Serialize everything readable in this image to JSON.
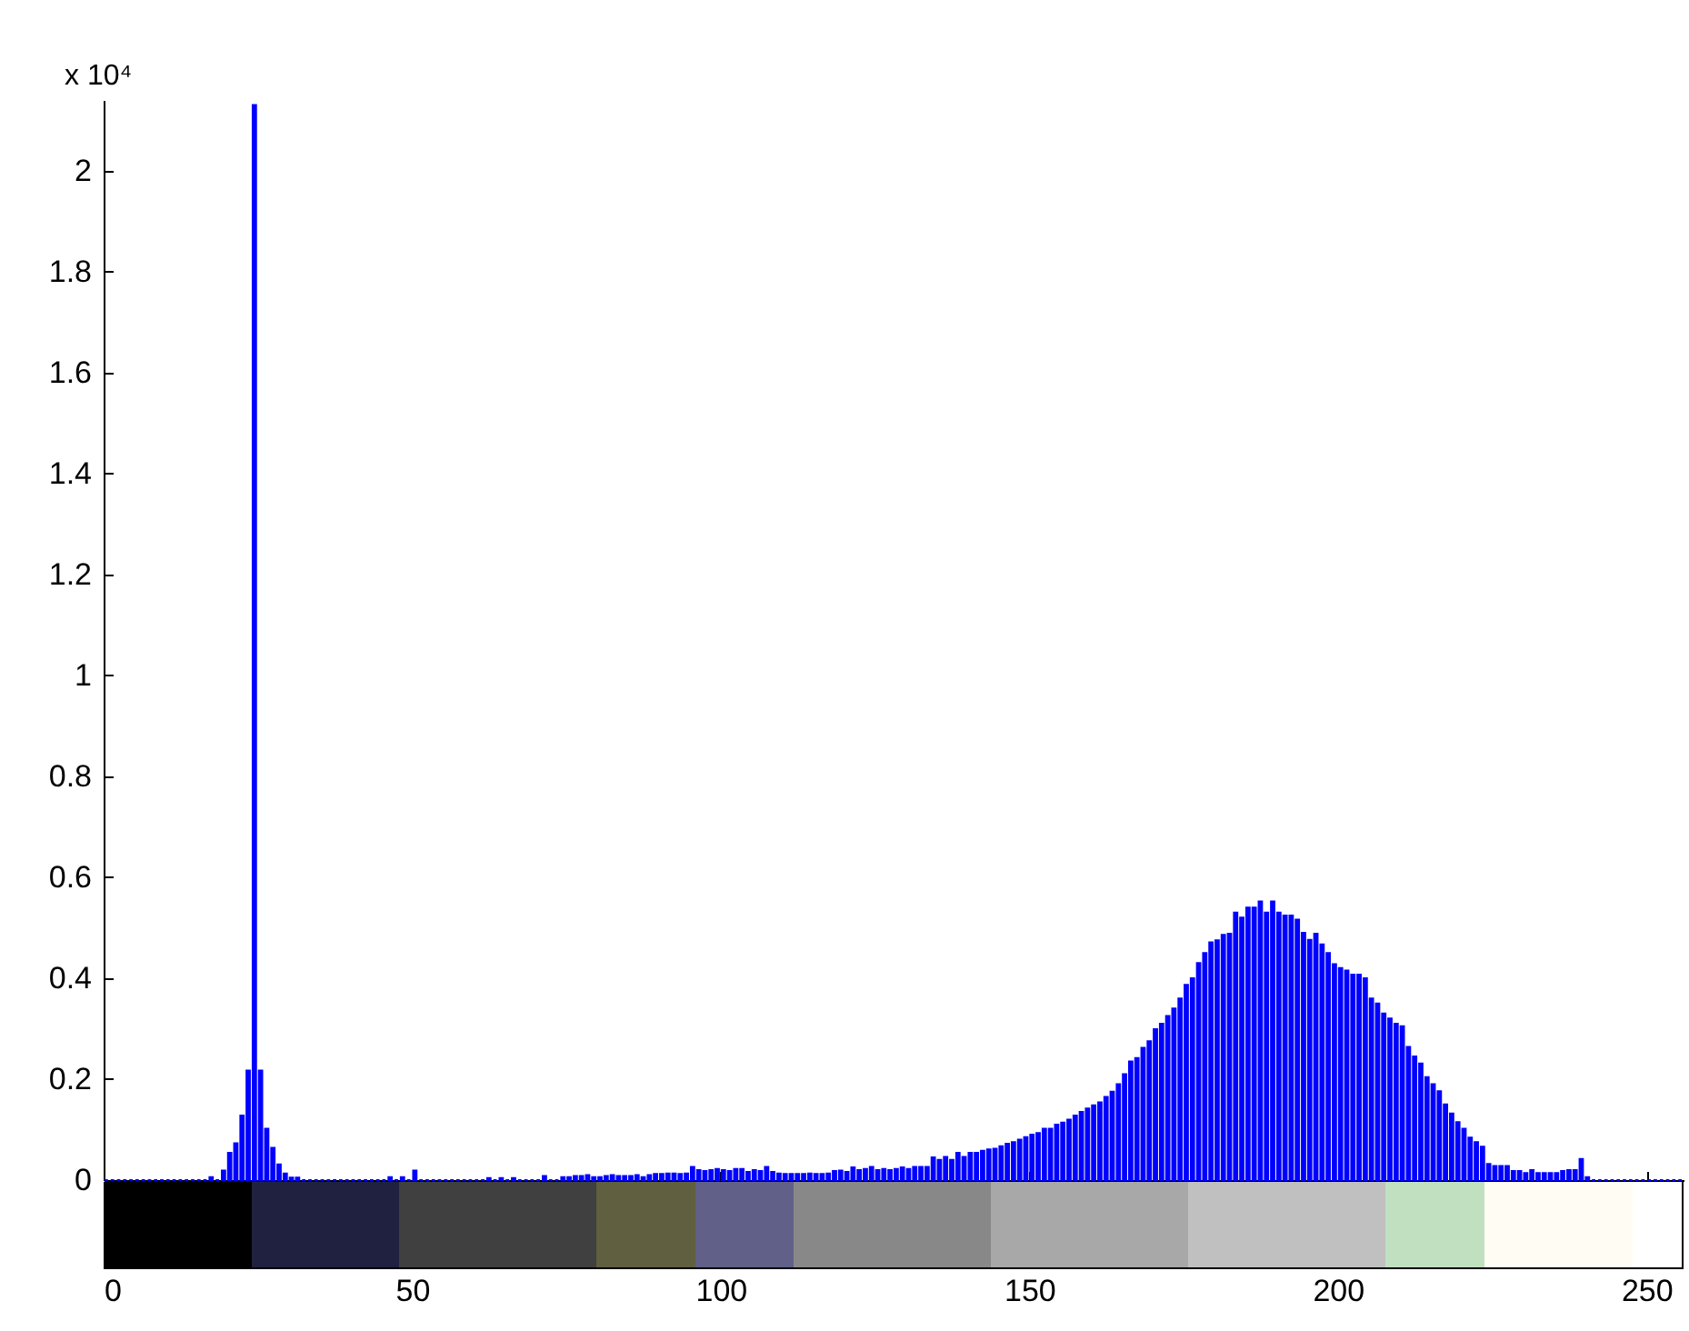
{
  "chart_data": {
    "type": "histogram",
    "ylabel": "x 10⁴",
    "color": "#0000ff",
    "bins": [
      0,
      1,
      2,
      3,
      4,
      5,
      6,
      7,
      8,
      9,
      10,
      11,
      12,
      13,
      14,
      15,
      16,
      17,
      18,
      19,
      20,
      21,
      22,
      23,
      24,
      25,
      26,
      27,
      28,
      29,
      30,
      31,
      32,
      33,
      34,
      35,
      36,
      37,
      38,
      39,
      40,
      41,
      42,
      43,
      44,
      45,
      46,
      47,
      48,
      49,
      50,
      51,
      52,
      53,
      54,
      55,
      56,
      57,
      58,
      59,
      60,
      61,
      62,
      63,
      64,
      65,
      66,
      67,
      68,
      69,
      70,
      71,
      72,
      73,
      74,
      75,
      76,
      77,
      78,
      79,
      80,
      81,
      82,
      83,
      84,
      85,
      86,
      87,
      88,
      89,
      90,
      91,
      92,
      93,
      94,
      95,
      96,
      97,
      98,
      99,
      100,
      101,
      102,
      103,
      104,
      105,
      106,
      107,
      108,
      109,
      110,
      111,
      112,
      113,
      114,
      115,
      116,
      117,
      118,
      119,
      120,
      121,
      122,
      123,
      124,
      125,
      126,
      127,
      128,
      129,
      130,
      131,
      132,
      133,
      134,
      135,
      136,
      137,
      138,
      139,
      140,
      141,
      142,
      143,
      144,
      145,
      146,
      147,
      148,
      149,
      150,
      151,
      152,
      153,
      154,
      155,
      156,
      157,
      158,
      159,
      160,
      161,
      162,
      163,
      164,
      165,
      166,
      167,
      168,
      169,
      170,
      171,
      172,
      173,
      174,
      175,
      176,
      177,
      178,
      179,
      180,
      181,
      182,
      183,
      184,
      185,
      186,
      187,
      188,
      189,
      190,
      191,
      192,
      193,
      194,
      195,
      196,
      197,
      198,
      199,
      200,
      201,
      202,
      203,
      204,
      205,
      206,
      207,
      208,
      209,
      210,
      211,
      212,
      213,
      214,
      215,
      216,
      217,
      218,
      219,
      220,
      221,
      222,
      223,
      224,
      225,
      226,
      227,
      228,
      229,
      230,
      231,
      232,
      233,
      234,
      235,
      236,
      237,
      238,
      239,
      240,
      241,
      242,
      243,
      244,
      245,
      246,
      247,
      248,
      249,
      250,
      251,
      252,
      253,
      254,
      255,
      256
    ],
    "values": [
      0,
      0,
      0,
      0,
      0,
      0,
      0,
      0,
      0,
      0,
      0,
      0,
      0,
      0,
      0,
      0,
      0,
      0.006,
      0,
      0.019,
      0.054,
      0.073,
      0.128,
      0.217,
      2.13,
      0.217,
      0.102,
      0.064,
      0.031,
      0.013,
      0.005,
      0.005,
      0,
      0,
      0,
      0,
      0,
      0,
      0,
      0,
      0,
      0,
      0,
      0,
      0,
      0,
      0.006,
      0,
      0.006,
      0,
      0.019,
      0,
      0,
      0,
      0,
      0,
      0,
      0,
      0,
      0,
      0,
      0,
      0.004,
      0,
      0.004,
      0,
      0.004,
      0,
      0,
      0,
      0,
      0.008,
      0,
      0,
      0.006,
      0.006,
      0.008,
      0.008,
      0.01,
      0.006,
      0.006,
      0.008,
      0.01,
      0.008,
      0.008,
      0.008,
      0.01,
      0.006,
      0.01,
      0.012,
      0.012,
      0.013,
      0.013,
      0.012,
      0.013,
      0.026,
      0.02,
      0.018,
      0.02,
      0.022,
      0.02,
      0.018,
      0.022,
      0.022,
      0.016,
      0.02,
      0.018,
      0.026,
      0.016,
      0.013,
      0.012,
      0.012,
      0.012,
      0.012,
      0.013,
      0.012,
      0.012,
      0.013,
      0.018,
      0.019,
      0.016,
      0.025,
      0.02,
      0.022,
      0.026,
      0.02,
      0.022,
      0.02,
      0.022,
      0.025,
      0.022,
      0.026,
      0.026,
      0.026,
      0.045,
      0.04,
      0.046,
      0.04,
      0.054,
      0.046,
      0.054,
      0.054,
      0.058,
      0.061,
      0.062,
      0.067,
      0.072,
      0.075,
      0.08,
      0.085,
      0.09,
      0.093,
      0.102,
      0.102,
      0.11,
      0.114,
      0.12,
      0.128,
      0.135,
      0.142,
      0.148,
      0.154,
      0.165,
      0.175,
      0.19,
      0.21,
      0.235,
      0.242,
      0.262,
      0.275,
      0.299,
      0.31,
      0.325,
      0.34,
      0.36,
      0.387,
      0.4,
      0.43,
      0.45,
      0.471,
      0.475,
      0.486,
      0.488,
      0.53,
      0.52,
      0.54,
      0.54,
      0.552,
      0.53,
      0.552,
      0.53,
      0.524,
      0.524,
      0.516,
      0.49,
      0.476,
      0.488,
      0.467,
      0.45,
      0.428,
      0.42,
      0.415,
      0.407,
      0.407,
      0.4,
      0.36,
      0.35,
      0.33,
      0.32,
      0.31,
      0.305,
      0.264,
      0.245,
      0.231,
      0.204,
      0.19,
      0.176,
      0.15,
      0.132,
      0.115,
      0.102,
      0.084,
      0.075,
      0.066,
      0.032,
      0.028,
      0.028,
      0.028,
      0.018,
      0.018,
      0.014,
      0.02,
      0.014,
      0.014,
      0.014,
      0.014,
      0.018,
      0.02,
      0.02,
      0.042,
      0.006,
      0,
      0,
      0,
      0,
      0,
      0,
      0,
      0,
      0,
      0,
      0,
      0,
      0,
      0,
      0
    ],
    "xlim": [
      0,
      256
    ],
    "ylim": [
      0,
      2.14
    ],
    "xticks": [
      0,
      50,
      100,
      150,
      200,
      250
    ],
    "yticks": [
      0,
      0.2,
      0.4,
      0.6,
      0.8,
      1,
      1.2,
      1.4,
      1.6,
      1.8,
      2
    ]
  }
}
